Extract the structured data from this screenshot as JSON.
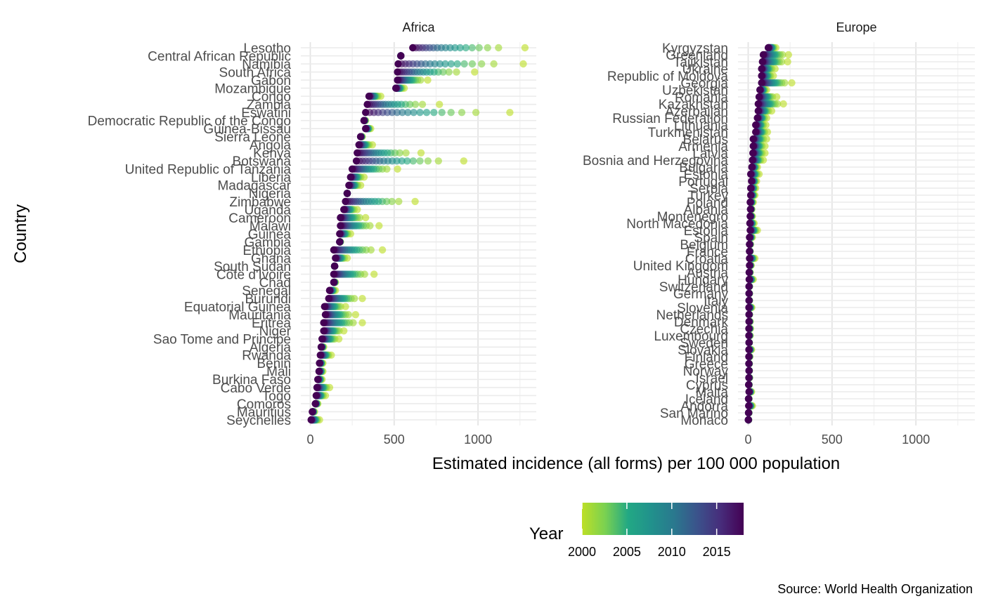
{
  "chart_data": {
    "type": "scatter",
    "title": "",
    "xlabel": "Estimated incidence (all forms) per 100 000 population",
    "ylabel": "Country",
    "xlim": [
      -60,
      1340
    ],
    "x_ticks": [
      0,
      500,
      1000
    ],
    "grid": true,
    "caption": "Source: World Health Organization",
    "legend": {
      "title": "Year",
      "position": "bottom",
      "range": [
        2000,
        2018
      ],
      "ticks": [
        2000,
        2005,
        2010,
        2015
      ],
      "colors": [
        "#bddf26",
        "#7ad151",
        "#22a884",
        "#21918c",
        "#2a788e",
        "#3b528b",
        "#472d7b",
        "#440154"
      ]
    },
    "years": [
      2000,
      2001,
      2002,
      2003,
      2004,
      2005,
      2006,
      2007,
      2008,
      2009,
      2010,
      2011,
      2012,
      2013,
      2014,
      2015,
      2016,
      2017,
      2018
    ],
    "panels": [
      {
        "name": "Africa",
        "countries": [
          {
            "label": "Lesotho",
            "min": 611,
            "max": 1280
          },
          {
            "label": "Central African Republic",
            "min": 540,
            "max": 540
          },
          {
            "label": "Namibia",
            "min": 524,
            "max": 1270
          },
          {
            "label": "South Africa",
            "min": 520,
            "max": 980
          },
          {
            "label": "Gabon",
            "min": 520,
            "max": 700
          },
          {
            "label": "Mozambique",
            "min": 510,
            "max": 560
          },
          {
            "label": "Congo",
            "min": 350,
            "max": 420
          },
          {
            "label": "Zambia",
            "min": 340,
            "max": 770
          },
          {
            "label": "Eswatini",
            "min": 330,
            "max": 1190
          },
          {
            "label": "Democratic Republic of the Congo",
            "min": 320,
            "max": 330
          },
          {
            "label": "Guinea-Bissau",
            "min": 330,
            "max": 360
          },
          {
            "label": "Sierra Leone",
            "min": 300,
            "max": 310
          },
          {
            "label": "Angola",
            "min": 290,
            "max": 370
          },
          {
            "label": "Kenya",
            "min": 280,
            "max": 660
          },
          {
            "label": "Botswana",
            "min": 275,
            "max": 915
          },
          {
            "label": "United Republic of Tanzania",
            "min": 250,
            "max": 520
          },
          {
            "label": "Liberia",
            "min": 240,
            "max": 320
          },
          {
            "label": "Madagascar",
            "min": 230,
            "max": 300
          },
          {
            "label": "Nigeria",
            "min": 220,
            "max": 220
          },
          {
            "label": "Zimbabwe",
            "min": 210,
            "max": 625
          },
          {
            "label": "Uganda",
            "min": 200,
            "max": 280
          },
          {
            "label": "Cameroon",
            "min": 180,
            "max": 330
          },
          {
            "label": "Malawi",
            "min": 180,
            "max": 410
          },
          {
            "label": "Guinea",
            "min": 175,
            "max": 240
          },
          {
            "label": "Gambia",
            "min": 175,
            "max": 180
          },
          {
            "label": "Ethiopia",
            "min": 140,
            "max": 430
          },
          {
            "label": "Ghana",
            "min": 150,
            "max": 220
          },
          {
            "label": "South Sudan",
            "min": 145,
            "max": 145
          },
          {
            "label": "Côte d'Ivoire",
            "min": 140,
            "max": 380
          },
          {
            "label": "Chad",
            "min": 140,
            "max": 150
          },
          {
            "label": "Senegal",
            "min": 115,
            "max": 150
          },
          {
            "label": "Burundi",
            "min": 110,
            "max": 310
          },
          {
            "label": "Equatorial Guinea",
            "min": 85,
            "max": 210
          },
          {
            "label": "Mauritania",
            "min": 90,
            "max": 270
          },
          {
            "label": "Eritrea",
            "min": 80,
            "max": 310
          },
          {
            "label": "Niger",
            "min": 80,
            "max": 200
          },
          {
            "label": "Sao Tome and Principe",
            "min": 70,
            "max": 170
          },
          {
            "label": "Algeria",
            "min": 65,
            "max": 80
          },
          {
            "label": "Rwanda",
            "min": 60,
            "max": 125
          },
          {
            "label": "Benin",
            "min": 55,
            "max": 75
          },
          {
            "label": "Mali",
            "min": 52,
            "max": 75
          },
          {
            "label": "Burkina Faso",
            "min": 45,
            "max": 70
          },
          {
            "label": "Cabo Verde",
            "min": 40,
            "max": 115
          },
          {
            "label": "Togo",
            "min": 35,
            "max": 90
          },
          {
            "label": "Comoros",
            "min": 30,
            "max": 45
          },
          {
            "label": "Mauritius",
            "min": 12,
            "max": 25
          },
          {
            "label": "Seychelles",
            "min": 5,
            "max": 55
          }
        ]
      },
      {
        "name": "Europe",
        "countries": [
          {
            "label": "Kyrgyzstan",
            "min": 120,
            "max": 165
          },
          {
            "label": "Greenland",
            "min": 90,
            "max": 240
          },
          {
            "label": "Tajikistan",
            "min": 85,
            "max": 235
          },
          {
            "label": "Ukraine",
            "min": 80,
            "max": 160
          },
          {
            "label": "Republic of Moldova",
            "min": 80,
            "max": 150
          },
          {
            "label": "Georgia",
            "min": 80,
            "max": 260
          },
          {
            "label": "Uzbekistan",
            "min": 70,
            "max": 110
          },
          {
            "label": "Romania",
            "min": 65,
            "max": 170
          },
          {
            "label": "Kazakhstan",
            "min": 60,
            "max": 210
          },
          {
            "label": "Azerbaijan",
            "min": 60,
            "max": 140
          },
          {
            "label": "Russian Federation",
            "min": 55,
            "max": 110
          },
          {
            "label": "Lithuania",
            "min": 45,
            "max": 105
          },
          {
            "label": "Turkmenistan",
            "min": 45,
            "max": 115
          },
          {
            "label": "Belarus",
            "min": 30,
            "max": 110
          },
          {
            "label": "Armenia",
            "min": 30,
            "max": 100
          },
          {
            "label": "Latvia",
            "min": 28,
            "max": 100
          },
          {
            "label": "Bosnia and Herzegovina",
            "min": 25,
            "max": 90
          },
          {
            "label": "Bulgaria",
            "min": 22,
            "max": 55
          },
          {
            "label": "Estonia",
            "min": 15,
            "max": 65
          },
          {
            "label": "Portugal",
            "min": 20,
            "max": 50
          },
          {
            "label": "Serbia",
            "min": 15,
            "max": 45
          },
          {
            "label": "Turkey",
            "min": 15,
            "max": 40
          },
          {
            "label": "Poland",
            "min": 12,
            "max": 30
          },
          {
            "label": "Albania",
            "min": 14,
            "max": 22
          },
          {
            "label": "Montenegro",
            "min": 12,
            "max": 25
          },
          {
            "label": "North Macedonia",
            "min": 10,
            "max": 35
          },
          {
            "label": "Estonia",
            "min": 12,
            "max": 55
          },
          {
            "label": "Spain",
            "min": 8,
            "max": 25
          },
          {
            "label": "Belgium",
            "min": 8,
            "max": 14
          },
          {
            "label": "France",
            "min": 8,
            "max": 12
          },
          {
            "label": "Croatia",
            "min": 8,
            "max": 40
          },
          {
            "label": "United Kingdom",
            "min": 8,
            "max": 18
          },
          {
            "label": "Austria",
            "min": 6,
            "max": 12
          },
          {
            "label": "Hungary",
            "min": 6,
            "max": 30
          },
          {
            "label": "Switzerland",
            "min": 5,
            "max": 8
          },
          {
            "label": "Germany",
            "min": 5,
            "max": 8
          },
          {
            "label": "Italy",
            "min": 5,
            "max": 8
          },
          {
            "label": "Slovenia",
            "min": 4,
            "max": 22
          },
          {
            "label": "Netherlands",
            "min": 5,
            "max": 8
          },
          {
            "label": "Denmark",
            "min": 5,
            "max": 12
          },
          {
            "label": "Czechia",
            "min": 4,
            "max": 14
          },
          {
            "label": "Luxembourg",
            "min": 4,
            "max": 12
          },
          {
            "label": "Sweden",
            "min": 5,
            "max": 7
          },
          {
            "label": "Slovakia",
            "min": 4,
            "max": 20
          },
          {
            "label": "Finland",
            "min": 4,
            "max": 10
          },
          {
            "label": "Greece",
            "min": 4,
            "max": 7
          },
          {
            "label": "Norway",
            "min": 5,
            "max": 7
          },
          {
            "label": "Israel",
            "min": 4,
            "max": 9
          },
          {
            "label": "Cyprus",
            "min": 3,
            "max": 6
          },
          {
            "label": "Malta",
            "min": 5,
            "max": 20
          },
          {
            "label": "Iceland",
            "min": 2,
            "max": 5
          },
          {
            "label": "Andorra",
            "min": 3,
            "max": 25
          },
          {
            "label": "San Marino",
            "min": 2,
            "max": 5
          },
          {
            "label": "Monaco",
            "min": 1,
            "max": 3
          }
        ]
      }
    ]
  }
}
